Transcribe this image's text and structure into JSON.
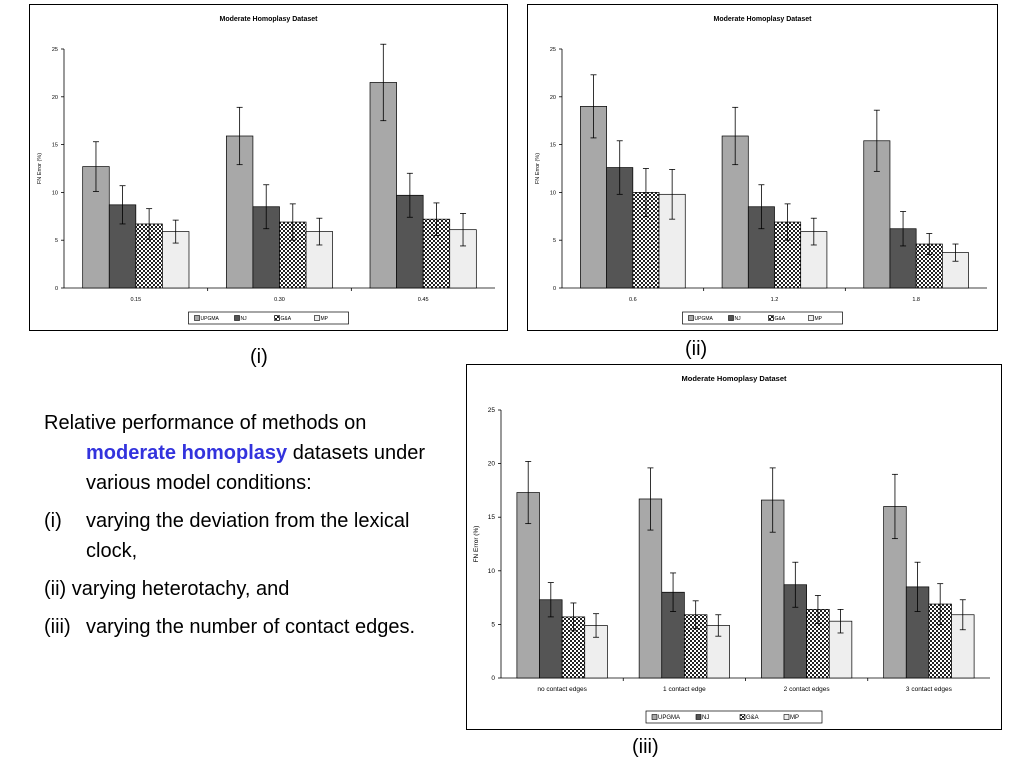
{
  "colors": {
    "UPGMA": "#a8a8a8",
    "NJ": "#555555",
    "G&A": "checker",
    "MP": "#eeeeee",
    "highlight": "#3333dd"
  },
  "chart_data": [
    {
      "type": "bar",
      "title": "Moderate Homoplasy Dataset",
      "ylabel": "FN Error (%)",
      "xlabel": "",
      "ylim": [
        0,
        25
      ],
      "yticks": [
        0,
        5,
        10,
        15,
        20,
        25
      ],
      "categories": [
        "0.15",
        "0.30",
        "0.45"
      ],
      "legend_position": "bottom",
      "series": [
        {
          "name": "UPGMA",
          "values": [
            12.7,
            15.9,
            21.5
          ],
          "err": [
            2.6,
            3.0,
            4.0
          ]
        },
        {
          "name": "NJ",
          "values": [
            8.7,
            8.5,
            9.7
          ],
          "err": [
            2.0,
            2.3,
            2.3
          ]
        },
        {
          "name": "G&A",
          "values": [
            6.7,
            6.9,
            7.2
          ],
          "err": [
            1.6,
            1.9,
            1.7
          ]
        },
        {
          "name": "MP",
          "values": [
            5.9,
            5.9,
            6.1
          ],
          "err": [
            1.2,
            1.4,
            1.7
          ]
        }
      ]
    },
    {
      "type": "bar",
      "title": "Moderate Homoplasy Dataset",
      "ylabel": "FN Error (%)",
      "xlabel": "",
      "ylim": [
        0,
        25
      ],
      "yticks": [
        0,
        5,
        10,
        15,
        20,
        25
      ],
      "categories": [
        "0.6",
        "1.2",
        "1.8"
      ],
      "legend_position": "bottom",
      "series": [
        {
          "name": "UPGMA",
          "values": [
            19.0,
            15.9,
            15.4
          ],
          "err": [
            3.3,
            3.0,
            3.2
          ]
        },
        {
          "name": "NJ",
          "values": [
            12.6,
            8.5,
            6.2
          ],
          "err": [
            2.8,
            2.3,
            1.8
          ]
        },
        {
          "name": "G&A",
          "values": [
            10.0,
            6.9,
            4.6
          ],
          "err": [
            2.5,
            1.9,
            1.1
          ]
        },
        {
          "name": "MP",
          "values": [
            9.8,
            5.9,
            3.7
          ],
          "err": [
            2.6,
            1.4,
            0.9
          ]
        }
      ]
    },
    {
      "type": "bar",
      "title": "Moderate Homoplasy Dataset",
      "ylabel": "FN Error (%)",
      "xlabel": "",
      "ylim": [
        0,
        25
      ],
      "yticks": [
        0,
        5,
        10,
        15,
        20,
        25
      ],
      "categories": [
        "no contact edges",
        "1 contact edge",
        "2 contact edges",
        "3 contact edges"
      ],
      "legend_position": "bottom",
      "series": [
        {
          "name": "UPGMA",
          "values": [
            17.3,
            16.7,
            16.6,
            16.0
          ],
          "err": [
            2.9,
            2.9,
            3.0,
            3.0
          ]
        },
        {
          "name": "NJ",
          "values": [
            7.3,
            8.0,
            8.7,
            8.5
          ],
          "err": [
            1.6,
            1.8,
            2.1,
            2.3
          ]
        },
        {
          "name": "G&A",
          "values": [
            5.7,
            5.9,
            6.4,
            6.9
          ],
          "err": [
            1.3,
            1.3,
            1.3,
            1.9
          ]
        },
        {
          "name": "MP",
          "values": [
            4.9,
            4.9,
            5.3,
            5.9
          ],
          "err": [
            1.1,
            1.0,
            1.1,
            1.4
          ]
        }
      ]
    }
  ],
  "captions": [
    "(i)",
    "(ii)",
    "(iii)"
  ],
  "description": {
    "intro_before": "Relative performance of methods on ",
    "intro_highlight": "moderate homoplasy",
    "intro_after": " datasets under various model conditions:",
    "items": [
      {
        "marker": "(i)",
        "text": "varying the deviation from the lexical clock,"
      },
      {
        "marker": "(ii)",
        "text": "varying heterotachy, and"
      },
      {
        "marker": "(iii)",
        "text": "varying the number of contact edges."
      }
    ]
  }
}
